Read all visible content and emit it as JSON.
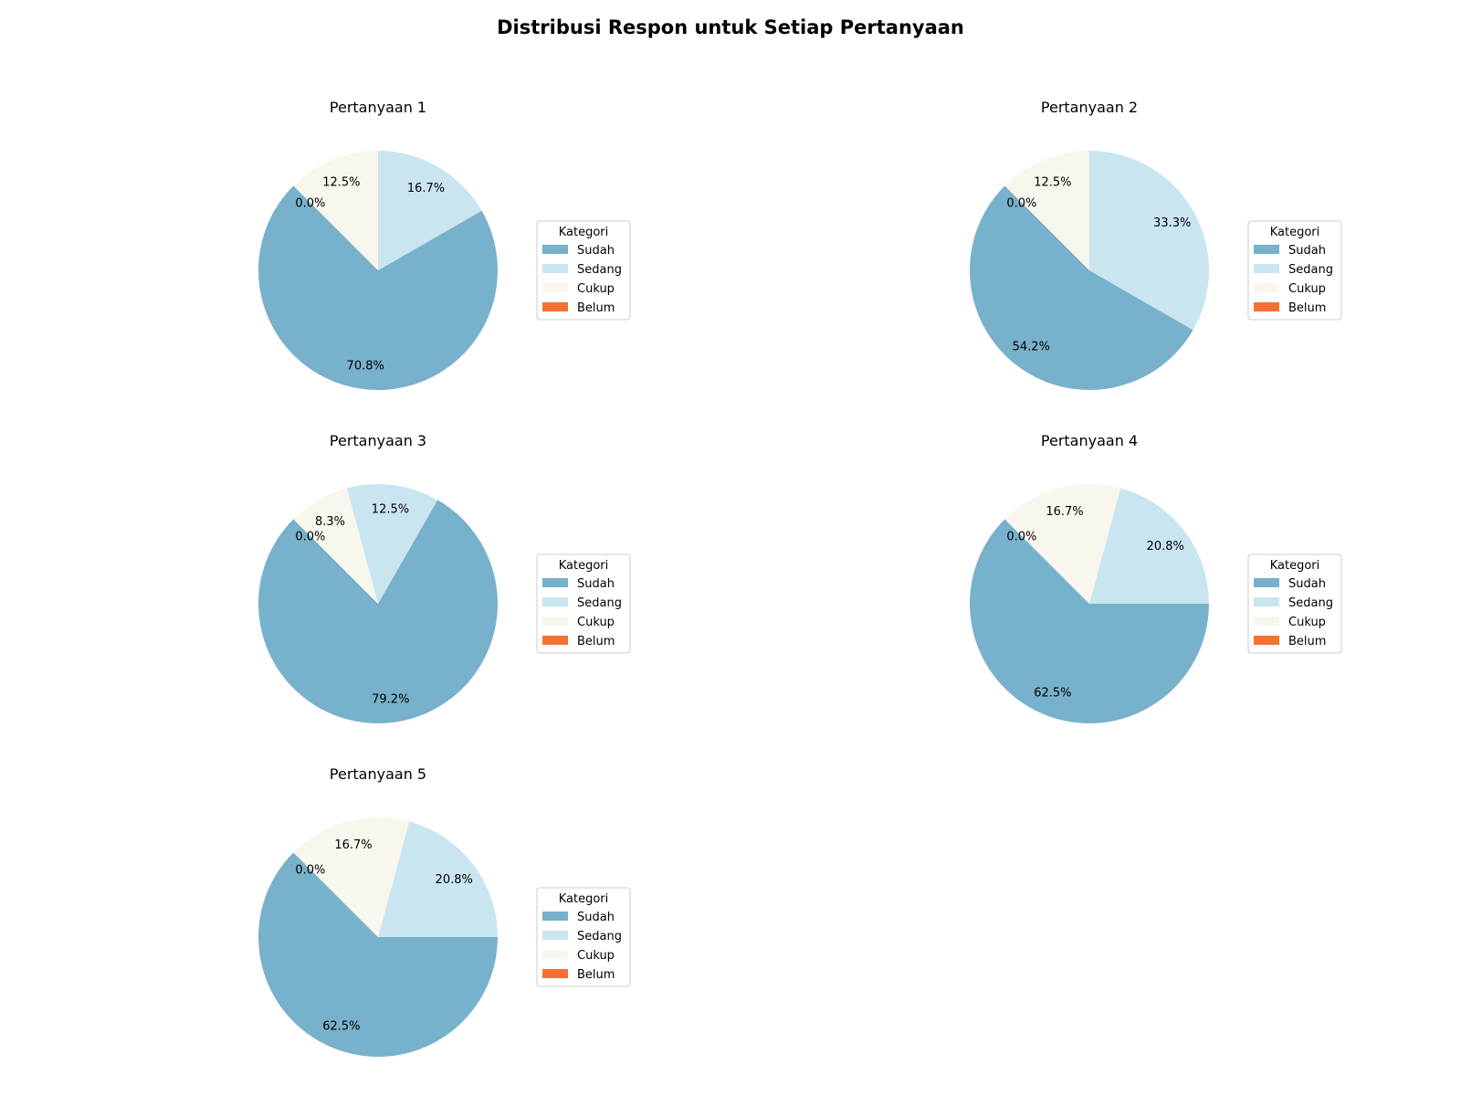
{
  "title": "Distribusi Respon untuk Setiap Pertanyaan",
  "legend_title": "Kategori",
  "category_colors": [
    "#78b1cc",
    "#c9e5f0",
    "#f9f6ee",
    "#f67030"
  ],
  "chart_data": [
    {
      "type": "pie",
      "title": "Pertanyaan 1",
      "categories": [
        "Sudah",
        "Sedang",
        "Cukup",
        "Belum"
      ],
      "values": [
        70.8,
        16.7,
        12.5,
        0.0
      ],
      "labels": [
        "70.8%",
        "16.7%",
        "12.5%",
        "0.0%"
      ],
      "legend": "right"
    },
    {
      "type": "pie",
      "title": "Pertanyaan 2",
      "categories": [
        "Sudah",
        "Sedang",
        "Cukup",
        "Belum"
      ],
      "values": [
        54.2,
        33.3,
        12.5,
        0.0
      ],
      "labels": [
        "54.2%",
        "33.3%",
        "12.5%",
        "0.0%"
      ],
      "legend": "right"
    },
    {
      "type": "pie",
      "title": "Pertanyaan 3",
      "categories": [
        "Sudah",
        "Sedang",
        "Cukup",
        "Belum"
      ],
      "values": [
        79.2,
        12.5,
        8.3,
        0.0
      ],
      "labels": [
        "79.2%",
        "12.5%",
        "8.3%",
        "0.0%"
      ],
      "legend": "right"
    },
    {
      "type": "pie",
      "title": "Pertanyaan 4",
      "categories": [
        "Sudah",
        "Sedang",
        "Cukup",
        "Belum"
      ],
      "values": [
        62.5,
        20.8,
        16.7,
        0.0
      ],
      "labels": [
        "62.5%",
        "20.8%",
        "16.7%",
        "0.0%"
      ],
      "legend": "right"
    },
    {
      "type": "pie",
      "title": "Pertanyaan 5",
      "categories": [
        "Sudah",
        "Sedang",
        "Cukup",
        "Belum"
      ],
      "values": [
        62.5,
        20.8,
        16.7,
        0.0
      ],
      "labels": [
        "62.5%",
        "20.8%",
        "16.7%",
        "0.0%"
      ],
      "legend": "right"
    }
  ]
}
